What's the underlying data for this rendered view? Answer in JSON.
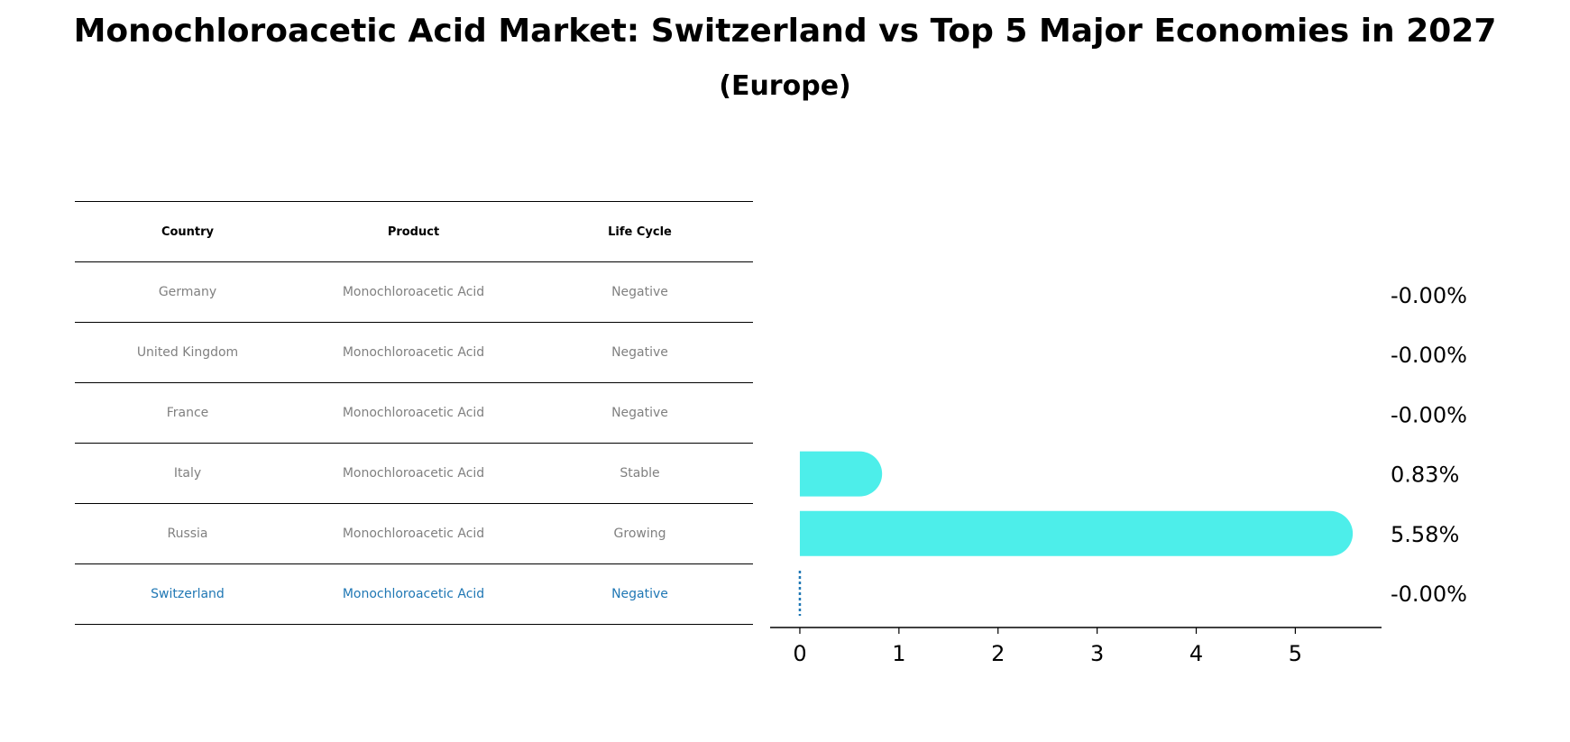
{
  "title": "Monochloroacetic Acid Market: Switzerland vs Top 5 Major Economies in 2027",
  "subtitle": "(Europe)",
  "table": {
    "headers": [
      "Country",
      "Product",
      "Life Cycle"
    ],
    "rows": [
      [
        "Germany",
        "Monochloroacetic Acid",
        "Negative"
      ],
      [
        "United Kingdom",
        "Monochloroacetic Acid",
        "Negative"
      ],
      [
        "France",
        "Monochloroacetic Acid",
        "Negative"
      ],
      [
        "Italy",
        "Monochloroacetic Acid",
        "Stable"
      ],
      [
        "Russia",
        "Monochloroacetic Acid",
        "Growing"
      ],
      [
        "Switzerland",
        "Monochloroacetic Acid",
        "Negative"
      ]
    ]
  },
  "chart_data": {
    "type": "bar",
    "orientation": "horizontal",
    "categories": [
      "Germany",
      "United Kingdom",
      "France",
      "Italy",
      "Russia",
      "Switzerland"
    ],
    "values": [
      -0.0,
      -0.0,
      -0.0,
      0.83,
      5.58,
      -0.0
    ],
    "value_labels": [
      "-0.00%",
      "-0.00%",
      "-0.00%",
      "0.83%",
      "5.58%",
      "-0.00%"
    ],
    "xticks": [
      "0",
      "1",
      "2",
      "3",
      "4",
      "5"
    ],
    "xlim": [
      -0.3,
      5.87
    ],
    "highlight_category": "Switzerland",
    "colors": {
      "bar": "#4deeea",
      "highlight": "#1f77b4",
      "text": "#000000"
    }
  }
}
